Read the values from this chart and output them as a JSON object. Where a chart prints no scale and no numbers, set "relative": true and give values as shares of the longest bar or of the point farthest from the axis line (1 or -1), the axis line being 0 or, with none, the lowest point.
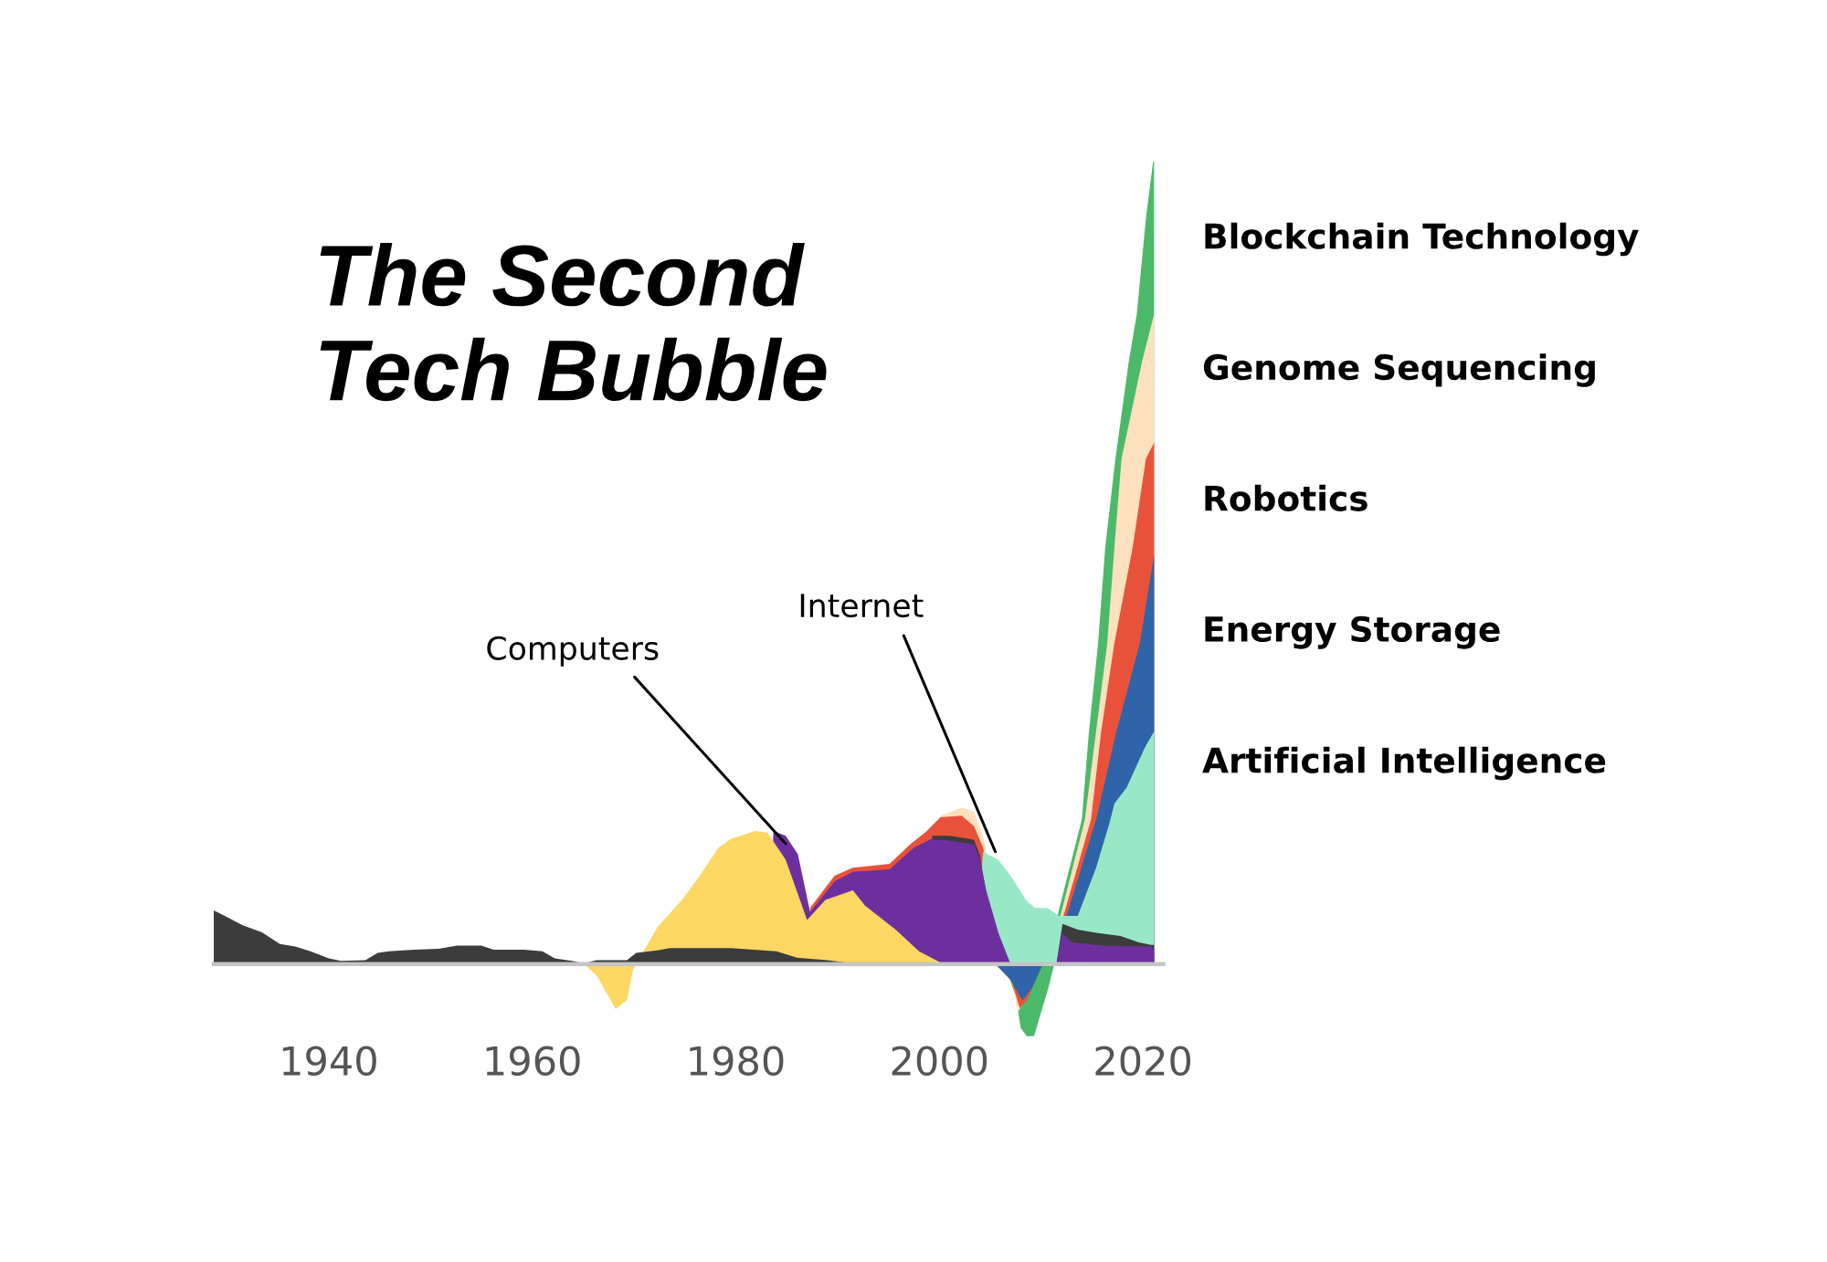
{
  "chart_data": {
    "type": "area",
    "title": "The Second\nTech Bubble",
    "relative": true,
    "tick_labels": "x",
    "xlim": [
      1928.7,
      2022.0
    ],
    "xticks": [
      1940,
      1960,
      1980,
      2000,
      2020
    ],
    "annotations": [
      {
        "text": "Computers",
        "x": 1984.9,
        "y": 0.15
      },
      {
        "text": "Internet",
        "x": 2005.5,
        "y": 0.14
      }
    ],
    "series": [
      {
        "name": "Blockchain Technology",
        "color": "#4cb96a",
        "x": [
          2006.4,
          2007.5,
          2008.0,
          2008.6,
          2009.3,
          2010.0,
          2010.7,
          2011.3,
          2011.6,
          2014.0,
          2014.7,
          2015.6,
          2016.3,
          2017.3,
          2018.6,
          2019.4,
          2020.3,
          2021.0,
          2021.1
        ],
        "values": [
          0,
          -0.04,
          -0.08,
          -0.09,
          -0.09,
          -0.06,
          -0.03,
          0,
          0.06,
          0.18,
          0.29,
          0.4,
          0.52,
          0.63,
          0.75,
          0.81,
          0.93,
          1.0,
          1.0
        ]
      },
      {
        "name": "Genome Sequencing",
        "color": "#fde0bd",
        "x": [
          1999.8,
          2000.1,
          2002.2,
          2003.4,
          2004.3,
          2006.8,
          2007.3,
          2007.7,
          2008.2,
          2009.1,
          2010.0,
          2011.9,
          2014.3,
          2015.4,
          2016.5,
          2017.2,
          2017.9,
          2019.9,
          2021.1
        ],
        "values": [
          0,
          0.185,
          0.195,
          0.19,
          0.16,
          0,
          -0.03,
          -0.06,
          -0.05,
          -0.03,
          0,
          0.06,
          0.18,
          0.29,
          0.4,
          0.52,
          0.63,
          0.75,
          0.81
        ]
      },
      {
        "name": "Robotics",
        "color": "#e8523a",
        "x": [
          1987.0,
          1987.3,
          1989.7,
          1991.5,
          1995.1,
          1997.2,
          1998.7,
          2000.1,
          2002.2,
          2003.4,
          2004.3,
          2006.8,
          2007.3,
          2007.9,
          2008.6,
          2009.3,
          2010.0,
          2012.2,
          2014.9,
          2015.9,
          2017.2,
          2019.0,
          2020.3,
          2021.1
        ],
        "values": [
          0,
          0.07,
          0.11,
          0.12,
          0.125,
          0.15,
          0.165,
          0.183,
          0.185,
          0.172,
          0.145,
          0,
          -0.03,
          -0.055,
          -0.045,
          -0.025,
          0,
          0.06,
          0.18,
          0.29,
          0.4,
          0.52,
          0.63,
          0.65
        ]
      },
      {
        "name": "Energy Storage",
        "color": "#2f64a8",
        "x": [
          2005.5,
          2007.0,
          2007.9,
          2008.2,
          2009.1,
          2010.0,
          2012.5,
          2015.4,
          2017.4,
          2019.7,
          2021.1
        ],
        "values": [
          0,
          -0.02,
          -0.04,
          -0.045,
          -0.03,
          -0.005,
          0.06,
          0.18,
          0.29,
          0.4,
          0.51
        ]
      },
      {
        "name": "Artificial Intelligence",
        "color": "#98e8c8",
        "x": [
          2003.4,
          2004.3,
          2005.8,
          2007.0,
          2008.5,
          2009.4,
          2010.6,
          2011.8,
          2013.6,
          2015.4,
          2016.7,
          2017.2,
          2018.4,
          2020.2,
          2021.1
        ],
        "values": [
          0,
          0.14,
          0.13,
          0.11,
          0.08,
          0.07,
          0.07,
          0.06,
          0.06,
          0.12,
          0.175,
          0.2,
          0.22,
          0.27,
          0.29
        ]
      },
      {
        "color": "#3c3c3c",
        "x": [
          1999.0,
          1999.3,
          2001.0,
          2003.4,
          2004.0,
          2004.3,
          2004.6,
          2005.0,
          2011.5,
          2012.1,
          2013.6,
          2015.4,
          2017.8,
          2019.6,
          2020.8,
          2021.1
        ],
        "values": [
          0,
          0.16,
          0.16,
          0.155,
          0.135,
          0.11,
          0.09,
          0,
          0,
          0.05,
          0.043,
          0.039,
          0.035,
          0.027,
          0.024,
          0.024
        ]
      },
      {
        "color": "#6e2f9e",
        "x": [
          1983.1,
          1983.7,
          1984.9,
          1986.1,
          1987.3,
          1989.7,
          1991.5,
          1995.1,
          1997.5,
          1999.2,
          2001.0,
          2003.4,
          2004.0,
          2004.6,
          2005.8,
          2007.0,
          2011.5,
          2012.1,
          2013.0,
          2016.0,
          2020.8,
          2021.1
        ],
        "values": [
          0,
          0.166,
          0.16,
          0.137,
          0.065,
          0.103,
          0.115,
          0.118,
          0.145,
          0.156,
          0.154,
          0.149,
          0.13,
          0.092,
          0.039,
          0,
          0,
          0.039,
          0.027,
          0.023,
          0.022,
          0.018
        ]
      },
      {
        "color": "#fdd764",
        "x": [
          1965.1,
          1966.3,
          1968.2,
          1969.3,
          1969.9,
          1972.3,
          1974.7,
          1976.5,
          1978.3,
          1979.5,
          1981.9,
          1983.1,
          1984.9,
          1987.0,
          1988.8,
          1991.5,
          1992.7,
          1995.7,
          1998.0,
          2000.4
        ],
        "values": [
          0,
          -0.014,
          -0.056,
          -0.045,
          -0.007,
          0.046,
          0.08,
          0.111,
          0.145,
          0.156,
          0.166,
          0.164,
          0.13,
          0.055,
          0.08,
          0.092,
          0.073,
          0.043,
          0.016,
          0
        ]
      },
      {
        "color": "#3c3c3c",
        "x": [
          1928.7,
          1930.1,
          1931.6,
          1933.4,
          1935.2,
          1936.7,
          1938.2,
          1940.0,
          1941.2,
          1943.6,
          1944.8,
          1945.9,
          1948.4,
          1950.8,
          1952.6,
          1955.0,
          1956.2,
          1959.2,
          1961.0,
          1962.2,
          1963.9,
          1965.1,
          1966.3,
          1969.3,
          1970.2,
          1972.3,
          1973.5,
          1979.5,
          1984.0,
          1986.0,
          1989.0,
          1992.0
        ],
        "values": [
          0.067,
          0.058,
          0.048,
          0.04,
          0.025,
          0.022,
          0.016,
          0.007,
          0.004,
          0.005,
          0.014,
          0.016,
          0.018,
          0.019,
          0.023,
          0.023,
          0.018,
          0.018,
          0.016,
          0.007,
          0.004,
          0.001,
          0.005,
          0.005,
          0.014,
          0.017,
          0.02,
          0.02,
          0.016,
          0.008,
          0.005,
          0
        ]
      }
    ]
  }
}
